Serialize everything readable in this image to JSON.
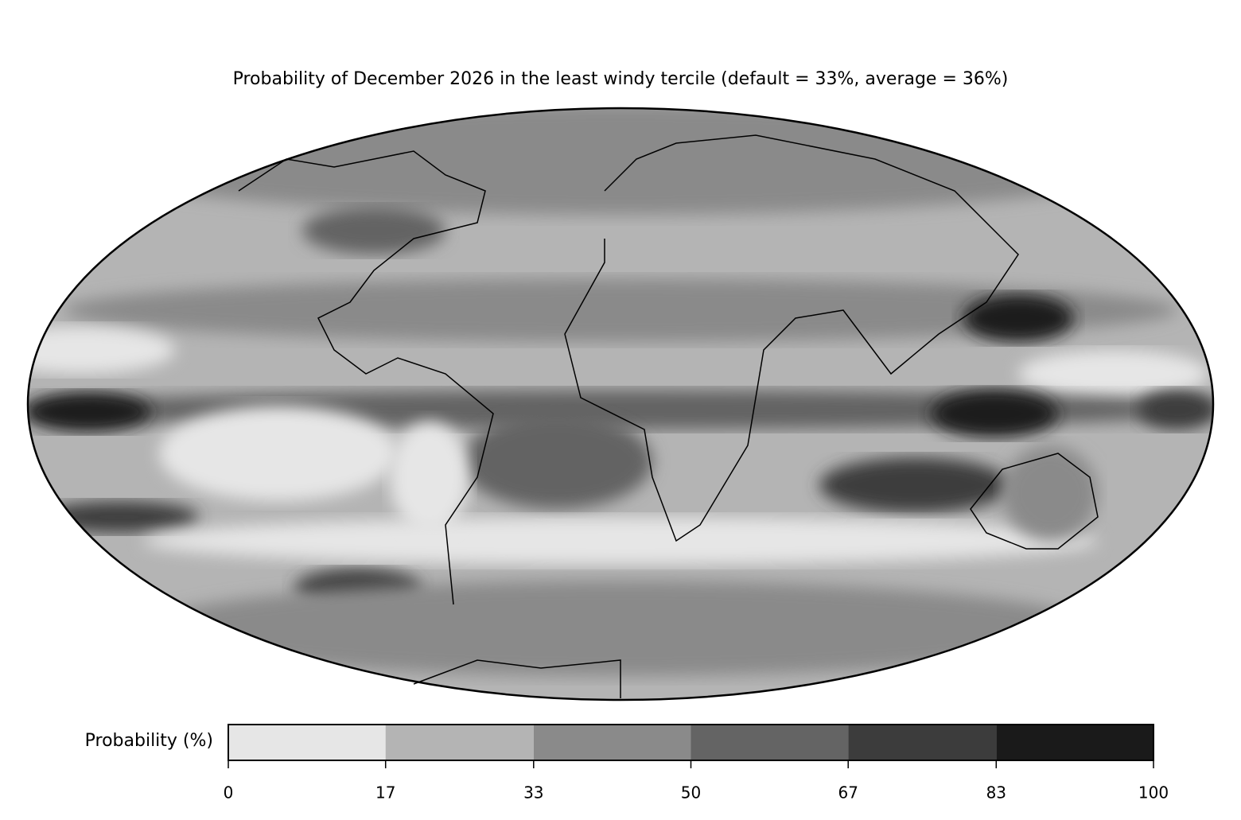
{
  "title": "Probability of December 2026 in the least windy tercile (default = 33%, average = 36%)",
  "colorbar": {
    "label": "Probability (%)",
    "lim": [
      0,
      100
    ],
    "ticks": [
      0,
      17,
      33,
      50,
      67,
      83,
      100
    ],
    "colors": [
      "#e6e6e6",
      "#b4b4b4",
      "#8a8a8a",
      "#646464",
      "#3c3c3c",
      "#1a1a1a"
    ]
  }
}
